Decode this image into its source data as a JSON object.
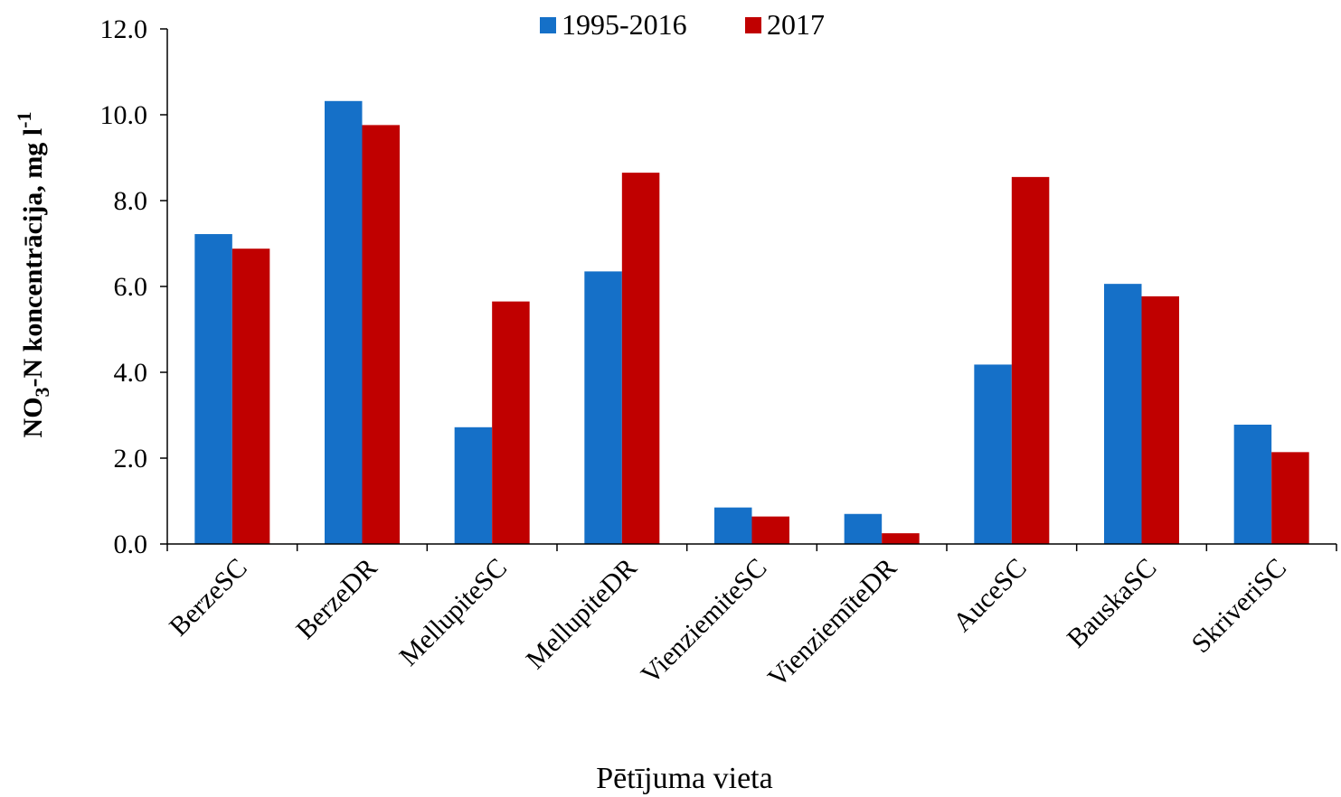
{
  "chart_data": {
    "type": "bar",
    "categories": [
      "BerzeSC",
      "BerzeDR",
      "MellupiteSC",
      "MellupiteDR",
      "VienziemiteSC",
      "VienziemīteDR",
      "AuceSC",
      "BauskaSC",
      "SkriveriSC"
    ],
    "series": [
      {
        "name": "1995-2016",
        "color": "#1570C8",
        "values": [
          7.22,
          10.32,
          2.72,
          6.35,
          0.85,
          0.7,
          4.18,
          6.06,
          2.78
        ]
      },
      {
        "name": "2017",
        "color": "#C00000",
        "values": [
          6.88,
          9.76,
          5.65,
          8.65,
          0.64,
          0.25,
          8.55,
          5.77,
          2.14
        ]
      }
    ],
    "xlabel": "Pētījuma vieta",
    "ylabel": {
      "prefix": "NO",
      "sub": "3",
      "middle": "-N koncentrācija, mg l",
      "sup": "-1"
    },
    "ylim": [
      0,
      12
    ],
    "yticks": [
      "0.0",
      "2.0",
      "4.0",
      "6.0",
      "8.0",
      "10.0",
      "12.0"
    ],
    "legend_position": "top-center",
    "grid": false
  }
}
